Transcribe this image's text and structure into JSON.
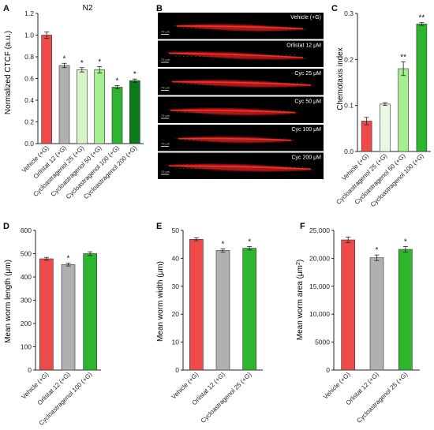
{
  "panels": {
    "A": {
      "letter": "A",
      "chart_data": {
        "type": "bar",
        "title": "N2",
        "xlabel": "",
        "ylabel": "Normalized CTCF (a.u.)",
        "ylim": [
          0.0,
          1.2
        ],
        "yticks": [
          "0.0",
          "0.2",
          "0.4",
          "0.6",
          "0.8",
          "1.0",
          "1.2"
        ],
        "categories": [
          "Vehicle (+G)",
          "Orlistat 12 (+G)",
          "Cycloastragenol 25 (+G)",
          "Cycloastragenol 50 (+G)",
          "Cycloastragenol 100 (+G)",
          "Cycloastragenol 200 (+G)"
        ],
        "values": [
          1.0,
          0.72,
          0.68,
          0.68,
          0.52,
          0.58
        ],
        "errors": [
          0.03,
          0.02,
          0.02,
          0.03,
          0.015,
          0.015
        ],
        "significance": [
          "",
          "*",
          "*",
          "*",
          "*",
          "*"
        ],
        "colors": [
          "#ee4a4a",
          "#b0b0b0",
          "#d6f5c6",
          "#a6ee92",
          "#2db52d",
          "#0a7a1a"
        ]
      }
    },
    "B": {
      "letter": "B",
      "images": [
        {
          "label": "Vehicle (+G)",
          "scale": "75 μm"
        },
        {
          "label": "Orlistat 12 μM",
          "scale": "75 μm"
        },
        {
          "label": "Cyc 25 μM",
          "scale": "75 μm"
        },
        {
          "label": "Cyc 50 μM",
          "scale": "75 μm"
        },
        {
          "label": "Cyc 100 μM",
          "scale": "75 μm"
        },
        {
          "label": "Cyc 200 μM",
          "scale": "75 μm"
        }
      ]
    },
    "C": {
      "letter": "C",
      "chart_data": {
        "type": "bar",
        "ylabel": "Chemotaxis index",
        "ylim": [
          0.0,
          0.3
        ],
        "yticks": [
          "0.0",
          "0.1",
          "0.2",
          "0.3"
        ],
        "categories": [
          "Vehicle (+G)",
          "Cycloastragenol 25 (+G)",
          "Cycloastragenol 50 (+G)",
          "Cycloastragenol 100 (+G)"
        ],
        "values": [
          0.066,
          0.103,
          0.18,
          0.277
        ],
        "errors": [
          0.008,
          0.003,
          0.015,
          0.003
        ],
        "significance": [
          "",
          "",
          "**",
          "**"
        ],
        "colors": [
          "#ee4a4a",
          "#e8f8e2",
          "#a6ee92",
          "#2db52d"
        ]
      }
    },
    "D": {
      "letter": "D",
      "chart_data": {
        "type": "bar",
        "ylabel": "Mean worm length (μm)",
        "ylim": [
          0,
          600
        ],
        "yticks": [
          "0",
          "100",
          "200",
          "300",
          "400",
          "500",
          "600"
        ],
        "categories": [
          "Vehicle (+G)",
          "Orlistat 12 (+G)",
          "Cycloastragenol 100 (+G)"
        ],
        "values": [
          478,
          453,
          500
        ],
        "errors": [
          6,
          6,
          8
        ],
        "significance": [
          "",
          "*",
          ""
        ],
        "colors": [
          "#ee4a4a",
          "#b0b0b0",
          "#2db52d"
        ]
      }
    },
    "E": {
      "letter": "E",
      "chart_data": {
        "type": "bar",
        "ylabel": "Mean worm width (μm)",
        "ylim": [
          0,
          50
        ],
        "yticks": [
          "0",
          "10",
          "20",
          "30",
          "40",
          "50"
        ],
        "categories": [
          "Vehicle (+G)",
          "Orlistat 12 (+G)",
          "Cycloastragenol 25 (+G)"
        ],
        "values": [
          46.8,
          42.8,
          43.6
        ],
        "errors": [
          0.5,
          0.6,
          0.6
        ],
        "significance": [
          "",
          "*",
          "*"
        ],
        "colors": [
          "#ee4a4a",
          "#b0b0b0",
          "#2db52d"
        ]
      }
    },
    "F": {
      "letter": "F",
      "chart_data": {
        "type": "bar",
        "ylabel": "Mean worm area (μm²)",
        "ylim": [
          0,
          25000
        ],
        "yticks": [
          "0",
          "5000",
          "10,000",
          "15,000",
          "20,000",
          "25,000"
        ],
        "categories": [
          "Vehicle (+G)",
          "Orlistat 12 (+G)",
          "Cycloastragenol 25 (+G)"
        ],
        "values": [
          23300,
          20100,
          21600
        ],
        "errors": [
          500,
          500,
          500
        ],
        "significance": [
          "",
          "*",
          "*"
        ],
        "colors": [
          "#ee4a4a",
          "#b0b0b0",
          "#2db52d"
        ]
      }
    }
  }
}
